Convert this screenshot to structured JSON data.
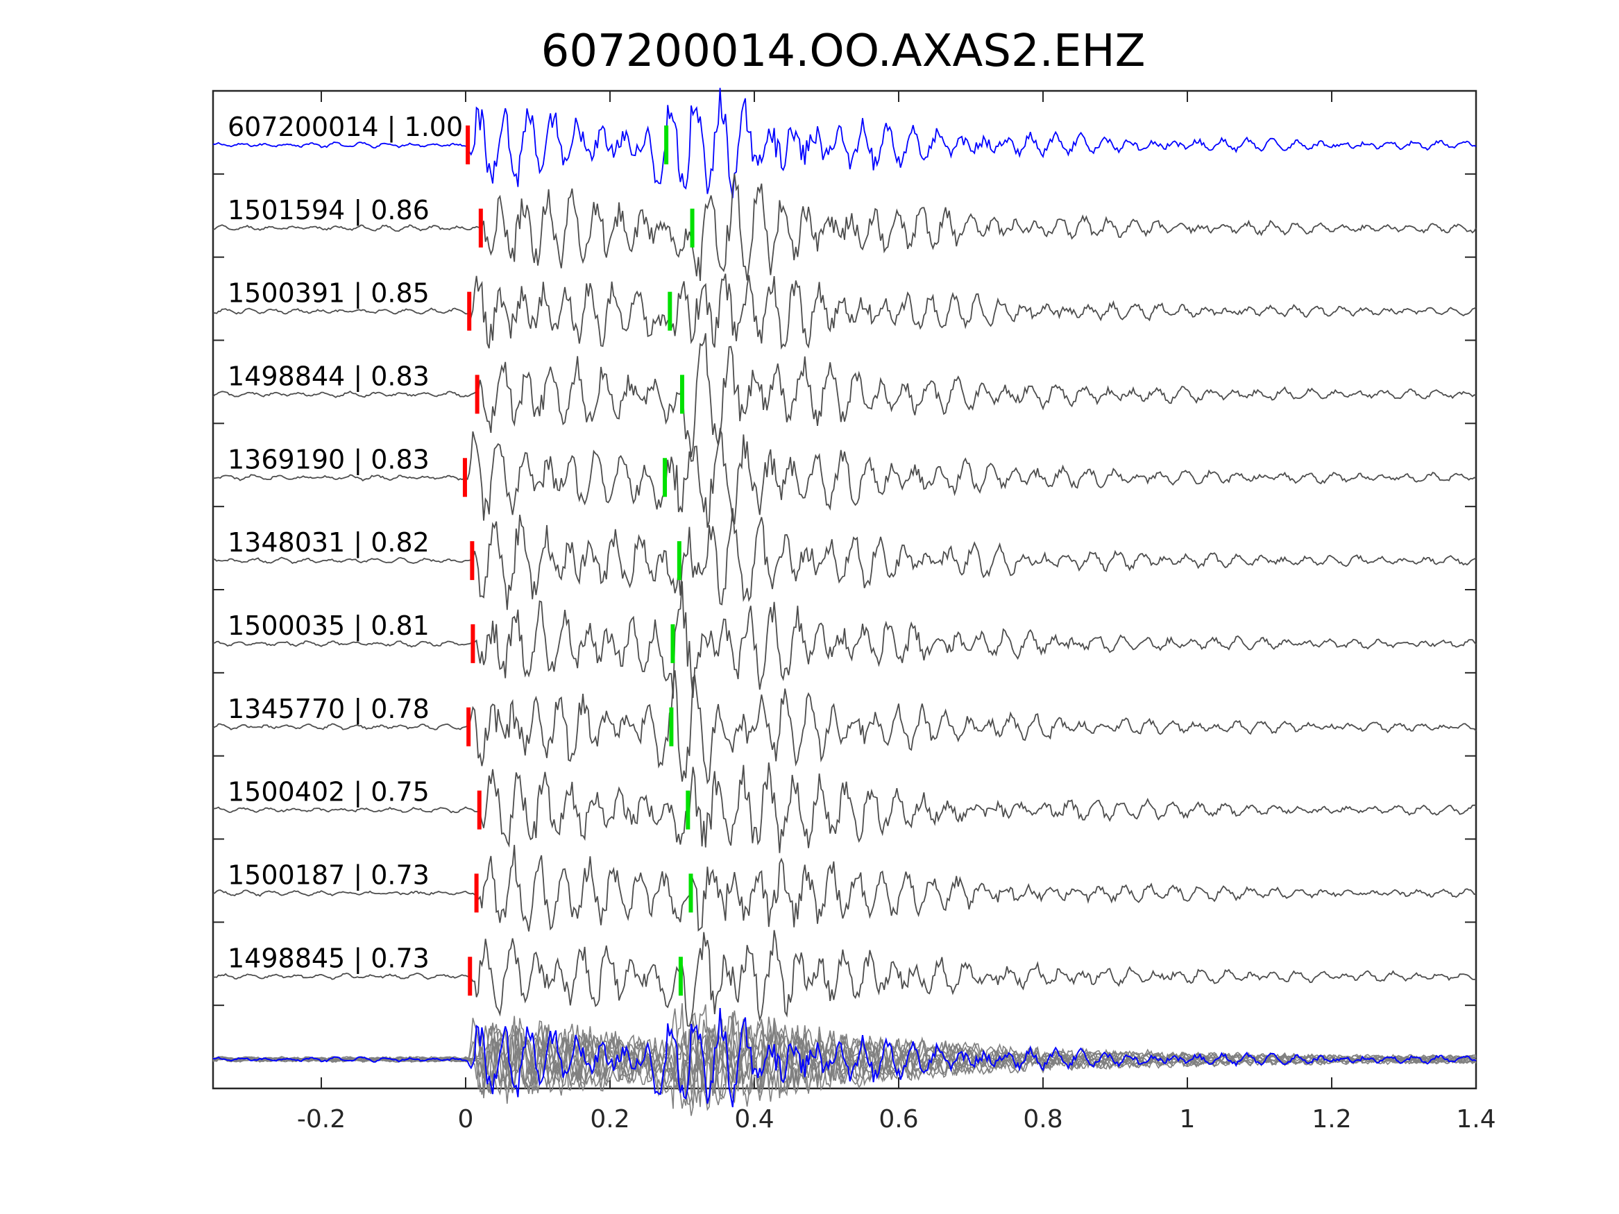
{
  "chart_data": {
    "type": "line",
    "title": "607200014.OO.AXAS2.EHZ",
    "xlabel": "",
    "ylabel": "",
    "xlim": [
      -0.35,
      1.4
    ],
    "xticks": [
      -0.2,
      0,
      0.2,
      0.4,
      0.6,
      0.8,
      1,
      1.2,
      1.4
    ],
    "xtick_labels": [
      "-0.2",
      "0",
      "0.2",
      "0.4",
      "0.6",
      "0.8",
      "1",
      "1.2",
      "1.4"
    ],
    "grid": false,
    "colors": {
      "master": "#0000ff",
      "trace": "#4d4d4d",
      "stack": "#808080",
      "p_pick": "#ff0000",
      "s_pick": "#00e000",
      "axis": "#262626"
    },
    "traces": [
      {
        "label": "607200014 | 1.00",
        "id": "607200014",
        "cc": 1.0,
        "p_pick": 0.003,
        "s_pick": 0.278,
        "master": true
      },
      {
        "label": "1501594 | 0.86",
        "id": "1501594",
        "cc": 0.86,
        "p_pick": 0.021,
        "s_pick": 0.314
      },
      {
        "label": "1500391 | 0.85",
        "id": "1500391",
        "cc": 0.85,
        "p_pick": 0.005,
        "s_pick": 0.283
      },
      {
        "label": "1498844 | 0.83",
        "id": "1498844",
        "cc": 0.83,
        "p_pick": 0.016,
        "s_pick": 0.3
      },
      {
        "label": "1369190 | 0.83",
        "id": "1369190",
        "cc": 0.83,
        "p_pick": -0.001,
        "s_pick": 0.276
      },
      {
        "label": "1348031 | 0.82",
        "id": "1348031",
        "cc": 0.82,
        "p_pick": 0.009,
        "s_pick": 0.296
      },
      {
        "label": "1500035 | 0.81",
        "id": "1500035",
        "cc": 0.81,
        "p_pick": 0.01,
        "s_pick": 0.287
      },
      {
        "label": "1345770 | 0.78",
        "id": "1345770",
        "cc": 0.78,
        "p_pick": 0.004,
        "s_pick": 0.285
      },
      {
        "label": "1500402 | 0.75",
        "id": "1500402",
        "cc": 0.75,
        "p_pick": 0.019,
        "s_pick": 0.308
      },
      {
        "label": "1500187 | 0.73",
        "id": "1500187",
        "cc": 0.73,
        "p_pick": 0.015,
        "s_pick": 0.312
      },
      {
        "label": "1498845 | 0.73",
        "id": "1498845",
        "cc": 0.73,
        "p_pick": 0.006,
        "s_pick": 0.298
      }
    ]
  }
}
